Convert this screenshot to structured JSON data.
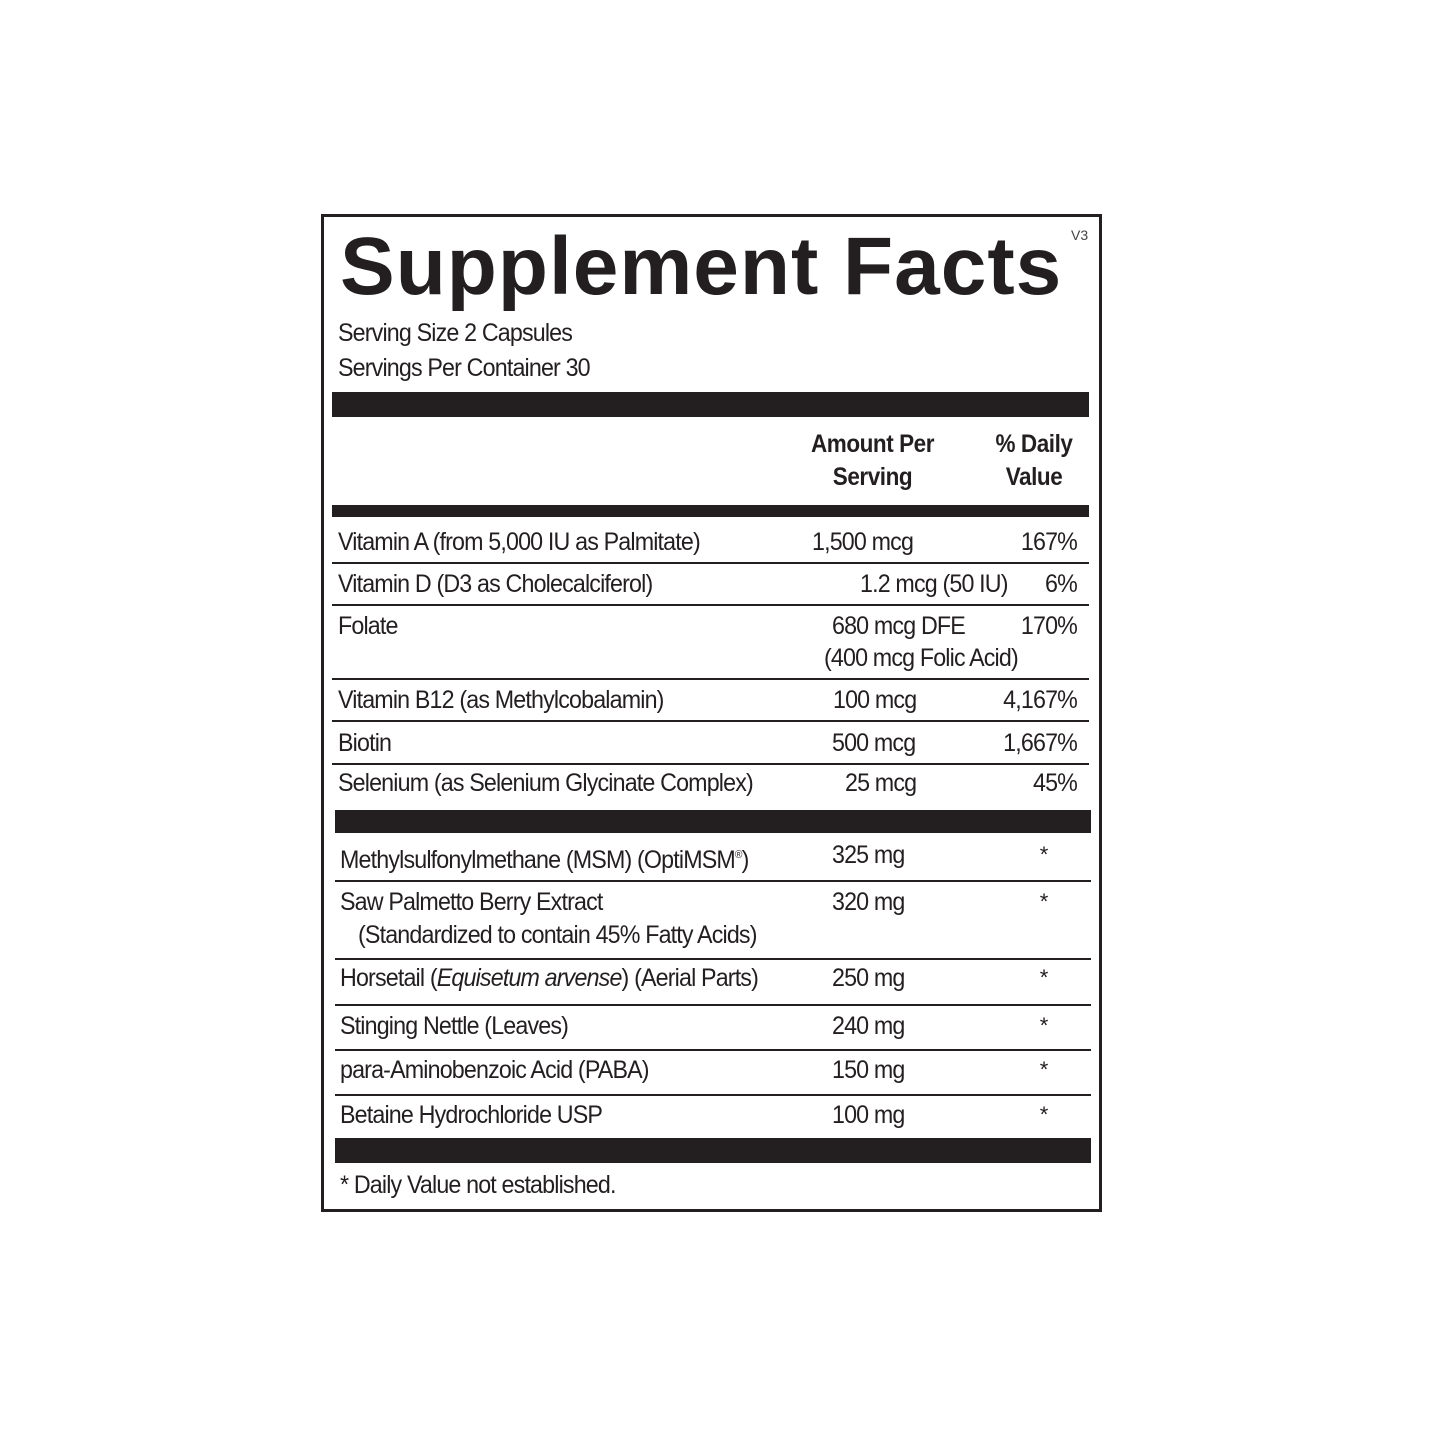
{
  "title": "Supplement Facts",
  "version": "V3",
  "serving_size": "Serving Size 2 Capsules",
  "servings_per_container": "Servings Per Container 30",
  "header": {
    "amount_line1": "Amount Per",
    "amount_line2": "Serving",
    "dv_line1": "% Daily",
    "dv_line2": "Value"
  },
  "vitamins": [
    {
      "name": "Vitamin A (from 5,000 IU as Palmitate)",
      "amount": "1,500 mcg",
      "dv": "167%"
    },
    {
      "name": "Vitamin D (D3 as Cholecalciferol)",
      "amount": "1.2 mcg (50 IU)",
      "dv": "6%"
    },
    {
      "name": "Folate",
      "amount": "680 mcg DFE",
      "amount_line2": "(400 mcg Folic Acid)",
      "dv": "170%"
    },
    {
      "name": "Vitamin B12 (as Methylcobalamin)",
      "amount": "100 mcg",
      "dv": "4,167%"
    },
    {
      "name": "Biotin",
      "amount": "500 mcg",
      "dv": "1,667%"
    },
    {
      "name": "Selenium (as Selenium Glycinate Complex)",
      "amount": "25 mcg",
      "dv": "45%"
    }
  ],
  "others": [
    {
      "name": "Methylsulfonylmethane (MSM) (OptiMSM",
      "name_suffix": "®",
      "name_end": ")",
      "amount": "325 mg",
      "dv": "*"
    },
    {
      "name": "Saw Palmetto Berry Extract",
      "name_line2": "(Standardized to contain 45% Fatty Acids)",
      "amount": "320 mg",
      "dv": "*"
    },
    {
      "name": "Horsetail (",
      "name_italic": "Equisetum arvense",
      "name_end": ") (Aerial Parts)",
      "amount": "250 mg",
      "dv": "*"
    },
    {
      "name": "Stinging Nettle (Leaves)",
      "amount": "240 mg",
      "dv": "*"
    },
    {
      "name": "para-Aminobenzoic Acid (PABA)",
      "amount": "150 mg",
      "dv": "*"
    },
    {
      "name": "Betaine Hydrochloride USP",
      "amount": "100 mg",
      "dv": "*"
    }
  ],
  "footnote": "* Daily Value not established."
}
